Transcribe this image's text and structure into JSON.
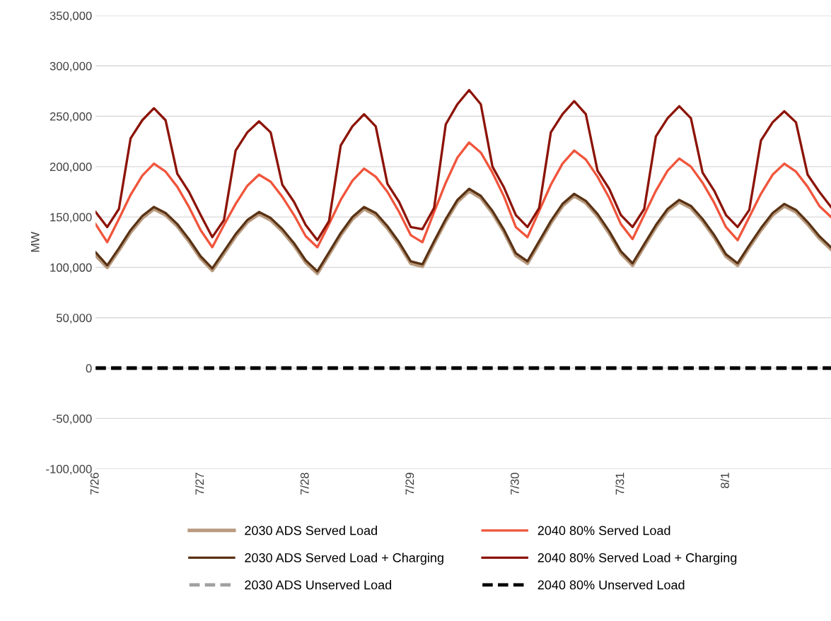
{
  "chart_data": {
    "type": "line",
    "ylabel": "MW",
    "categories": [
      "7/26",
      null,
      null,
      null,
      null,
      null,
      null,
      null,
      null,
      "7/27",
      null,
      null,
      null,
      null,
      null,
      null,
      null,
      null,
      "7/28",
      null,
      null,
      null,
      null,
      null,
      null,
      null,
      null,
      "7/29",
      null,
      null,
      null,
      null,
      null,
      null,
      null,
      null,
      "7/30",
      null,
      null,
      null,
      null,
      null,
      null,
      null,
      null,
      "7/31",
      null,
      null,
      null,
      null,
      null,
      null,
      null,
      null,
      "8/1",
      null,
      null,
      null,
      null,
      null,
      null,
      null,
      null,
      null
    ],
    "ylim": [
      -100000,
      350000
    ],
    "yticks": [
      {
        "value": -100000,
        "label": "-100,000"
      },
      {
        "value": -50000,
        "label": "-50,000"
      },
      {
        "value": 0,
        "label": "0"
      },
      {
        "value": 50000,
        "label": "50,000"
      },
      {
        "value": 100000,
        "label": "100,000"
      },
      {
        "value": 150000,
        "label": "150,000"
      },
      {
        "value": 200000,
        "label": "200,000"
      },
      {
        "value": 250000,
        "label": "250,000"
      },
      {
        "value": 300000,
        "label": "300,000"
      },
      {
        "value": 350000,
        "label": "350,000"
      }
    ],
    "grid": "y",
    "legend": "bottom",
    "series": [
      {
        "name": "2030 ADS Served Load",
        "color": "#b89a7e",
        "line_style": "solid",
        "values": [
          112000,
          100000,
          117000,
          135000,
          149000,
          158000,
          152000,
          141000,
          126000,
          109000,
          97000,
          114000,
          131000,
          145000,
          153000,
          147000,
          136000,
          122000,
          105000,
          94000,
          113000,
          132000,
          148000,
          158000,
          152000,
          139000,
          123000,
          104000,
          101000,
          124000,
          146000,
          165000,
          176000,
          169000,
          154000,
          135000,
          112000,
          104000,
          124000,
          144000,
          161000,
          171000,
          164000,
          151000,
          134000,
          114000,
          102000,
          121000,
          140000,
          156000,
          165000,
          159000,
          146000,
          130000,
          111000,
          102000,
          120000,
          137000,
          152000,
          161000,
          155000,
          143000,
          129000,
          118000
        ]
      },
      {
        "name": "2040 80% Served Load",
        "color": "#f0553c",
        "line_style": "solid",
        "values": [
          143000,
          125000,
          148000,
          172000,
          191000,
          203000,
          195000,
          180000,
          160000,
          137000,
          120000,
          142000,
          163000,
          181000,
          192000,
          185000,
          170000,
          152000,
          131000,
          120000,
          143000,
          167000,
          186000,
          198000,
          190000,
          175000,
          155000,
          132000,
          125000,
          155000,
          184000,
          209000,
          224000,
          214000,
          194000,
          170000,
          140000,
          130000,
          156000,
          182000,
          203000,
          216000,
          207000,
          190000,
          169000,
          143000,
          128000,
          152000,
          176000,
          196000,
          208000,
          200000,
          184000,
          164000,
          140000,
          127000,
          150000,
          173000,
          192000,
          203000,
          195000,
          180000,
          161000,
          150000
        ]
      },
      {
        "name": "2030 ADS Served Load + Charging",
        "color": "#5a3214",
        "line_style": "solid",
        "values": [
          115000,
          102000,
          119000,
          137000,
          151000,
          160000,
          154000,
          143000,
          128000,
          111000,
          99000,
          116000,
          133000,
          147000,
          155000,
          149000,
          138000,
          124000,
          107000,
          96000,
          115000,
          134000,
          150000,
          160000,
          154000,
          141000,
          125000,
          106000,
          103000,
          126000,
          148000,
          167000,
          178000,
          171000,
          156000,
          137000,
          114000,
          106000,
          126000,
          146000,
          163000,
          173000,
          166000,
          153000,
          136000,
          116000,
          104000,
          123000,
          142000,
          158000,
          167000,
          161000,
          148000,
          132000,
          113000,
          104000,
          122000,
          139000,
          154000,
          163000,
          157000,
          145000,
          131000,
          120000
        ]
      },
      {
        "name": "2040 80% Served Load + Charging",
        "color": "#8c1408",
        "line_style": "solid",
        "values": [
          155000,
          140000,
          158000,
          228000,
          246000,
          258000,
          246000,
          193000,
          175000,
          152000,
          130000,
          147000,
          216000,
          234000,
          245000,
          234000,
          182000,
          165000,
          142000,
          127000,
          146000,
          221000,
          240000,
          252000,
          240000,
          183000,
          165000,
          140000,
          138000,
          159000,
          242000,
          262000,
          276000,
          262000,
          200000,
          179000,
          152000,
          140000,
          159000,
          234000,
          252000,
          265000,
          252000,
          196000,
          178000,
          152000,
          140000,
          158000,
          230000,
          248000,
          260000,
          248000,
          194000,
          176000,
          152000,
          140000,
          157000,
          226000,
          244000,
          255000,
          244000,
          192000,
          175000,
          160000
        ]
      },
      {
        "name": "2030 ADS Unserved Load",
        "color": "#a0a0a0",
        "line_style": "dashed",
        "values": [
          0,
          0,
          0,
          0,
          0,
          0,
          0,
          0,
          0,
          0,
          0,
          0,
          0,
          0,
          0,
          0,
          0,
          0,
          0,
          0,
          0,
          0,
          0,
          0,
          0,
          0,
          0,
          0,
          0,
          0,
          0,
          0,
          0,
          0,
          0,
          0,
          0,
          0,
          0,
          0,
          0,
          0,
          0,
          0,
          0,
          0,
          0,
          0,
          0,
          0,
          0,
          0,
          0,
          0,
          0,
          0,
          0,
          0,
          0,
          0,
          0,
          0,
          0,
          0
        ]
      },
      {
        "name": "2040 80% Unserved Load",
        "color": "#000000",
        "line_style": "dashed",
        "values": [
          0,
          0,
          0,
          0,
          0,
          0,
          0,
          0,
          0,
          0,
          0,
          0,
          0,
          0,
          0,
          0,
          0,
          0,
          0,
          0,
          0,
          0,
          0,
          0,
          0,
          0,
          0,
          0,
          0,
          0,
          0,
          0,
          0,
          0,
          0,
          0,
          0,
          0,
          0,
          0,
          0,
          0,
          0,
          0,
          0,
          0,
          0,
          0,
          0,
          0,
          0,
          0,
          0,
          0,
          0,
          0,
          0,
          0,
          0,
          0,
          0,
          0,
          0,
          0
        ]
      }
    ]
  }
}
